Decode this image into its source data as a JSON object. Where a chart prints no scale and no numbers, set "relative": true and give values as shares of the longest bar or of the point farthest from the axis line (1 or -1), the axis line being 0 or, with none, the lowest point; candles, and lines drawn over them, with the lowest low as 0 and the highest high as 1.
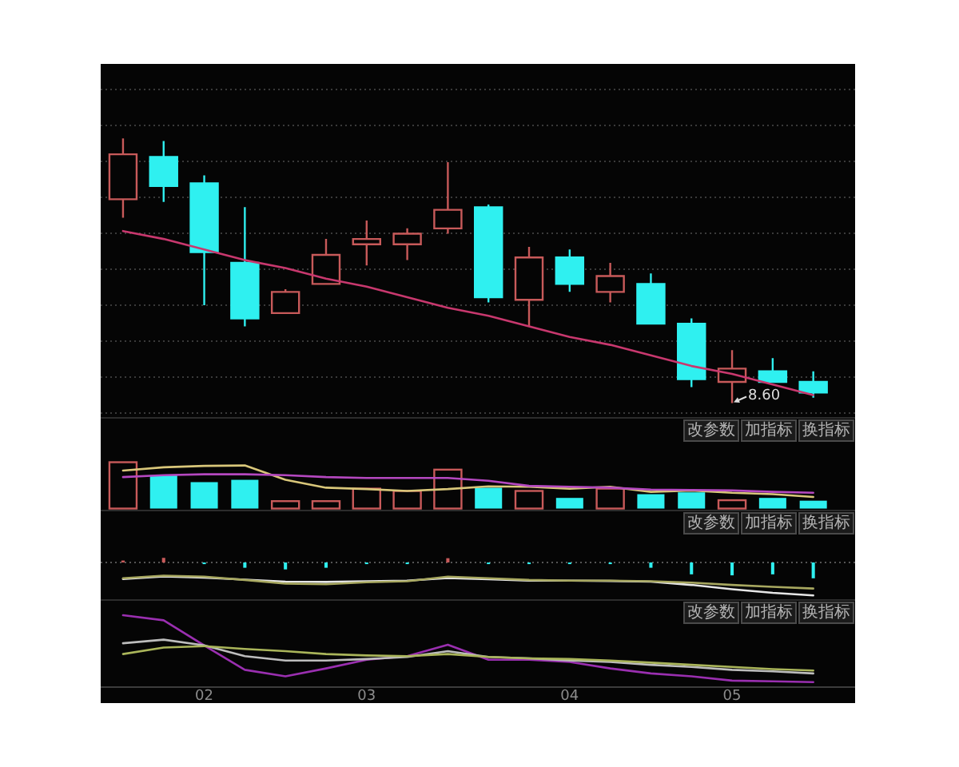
{
  "chart_data": [
    {
      "type": "candlestick",
      "relative": true,
      "grid": "y",
      "tick_labels": false,
      "categories": [
        null,
        null,
        "02",
        null,
        null,
        null,
        "03",
        null,
        null,
        null,
        null,
        "04",
        null,
        null,
        null,
        "05",
        null,
        null
      ],
      "ohlc": [
        [
          0.77,
          1.0,
          0.7,
          0.94
        ],
        [
          0.93,
          0.99,
          0.76,
          0.82
        ],
        [
          0.83,
          0.86,
          0.37,
          0.57
        ],
        [
          0.53,
          0.74,
          0.29,
          0.32
        ],
        [
          0.34,
          0.43,
          0.34,
          0.42
        ],
        [
          0.45,
          0.62,
          0.45,
          0.56
        ],
        [
          0.6,
          0.69,
          0.52,
          0.62
        ],
        [
          0.6,
          0.66,
          0.54,
          0.64
        ],
        [
          0.66,
          0.91,
          0.64,
          0.73
        ],
        [
          0.74,
          0.75,
          0.38,
          0.4
        ],
        [
          0.39,
          0.59,
          0.29,
          0.55
        ],
        [
          0.55,
          0.58,
          0.42,
          0.45
        ],
        [
          0.42,
          0.53,
          0.38,
          0.48
        ],
        [
          0.45,
          0.49,
          0.3,
          0.3
        ],
        [
          0.3,
          0.32,
          0.06,
          0.09
        ],
        [
          0.08,
          0.2,
          0.0,
          0.13
        ],
        [
          0.12,
          0.17,
          0.08,
          0.08
        ],
        [
          0.08,
          0.12,
          0.02,
          0.04
        ]
      ],
      "colors": [
        "#c85a5a",
        "#2ff0f0",
        "#2ff0f0",
        "#2ff0f0",
        "#c85a5a",
        "#c85a5a",
        "#c85a5a",
        "#c85a5a",
        "#c85a5a",
        "#2ff0f0",
        "#c85a5a",
        "#2ff0f0",
        "#c85a5a",
        "#2ff0f0",
        "#2ff0f0",
        "#c85a5a",
        "#2ff0f0",
        "#2ff0f0"
      ],
      "series": [
        {
          "type": "line",
          "color": "#c8386e",
          "values": [
            0.65,
            0.62,
            0.58,
            0.54,
            0.51,
            0.47,
            0.44,
            0.4,
            0.36,
            0.33,
            0.29,
            0.25,
            0.22,
            0.18,
            0.14,
            0.11,
            0.07,
            0.03
          ]
        }
      ],
      "annotations": [
        {
          "text": "8.60",
          "x": "05",
          "y": 0
        }
      ]
    },
    {
      "type": "bar",
      "relative": true,
      "tick_labels": false,
      "categories": [
        null,
        null,
        "02",
        null,
        null,
        null,
        "03",
        null,
        null,
        null,
        null,
        "04",
        null,
        null,
        null,
        "05",
        null,
        null
      ],
      "series": [
        {
          "colors": [
            "#c85a5a",
            "#2ff0f0",
            "#2ff0f0",
            "#2ff0f0",
            "#c85a5a",
            "#c85a5a",
            "#c85a5a",
            "#c85a5a",
            "#c85a5a",
            "#2ff0f0",
            "#c85a5a",
            "#2ff0f0",
            "#c85a5a",
            "#2ff0f0",
            "#2ff0f0",
            "#c85a5a",
            "#2ff0f0",
            "#2ff0f0"
          ],
          "values": [
            1.0,
            0.72,
            0.57,
            0.62,
            0.16,
            0.16,
            0.43,
            0.38,
            0.84,
            0.45,
            0.38,
            0.23,
            0.43,
            0.31,
            0.35,
            0.18,
            0.23,
            0.17
          ]
        },
        {
          "type": "line",
          "color": "#d9c77a",
          "values": [
            0.82,
            0.89,
            0.92,
            0.93,
            0.62,
            0.45,
            0.42,
            0.38,
            0.42,
            0.48,
            0.47,
            0.43,
            0.47,
            0.36,
            0.39,
            0.34,
            0.31,
            0.25
          ]
        },
        {
          "type": "line",
          "color": "#b548c0",
          "values": [
            0.68,
            0.72,
            0.74,
            0.74,
            0.72,
            0.68,
            0.66,
            0.66,
            0.66,
            0.6,
            0.49,
            0.47,
            0.45,
            0.41,
            0.4,
            0.39,
            0.36,
            0.34
          ]
        }
      ],
      "annotations": [
        "改参数",
        "加指标",
        "换指标"
      ]
    },
    {
      "type": "bar",
      "relative": true,
      "tick_labels": false,
      "categories": [
        null,
        null,
        "02",
        null,
        null,
        null,
        "03",
        null,
        null,
        null,
        null,
        "04",
        null,
        null,
        null,
        "05",
        null,
        null
      ],
      "series": [
        {
          "colors": [
            "#c85a5a",
            "#c85a5a",
            "#2ff0f0",
            "#2ff0f0",
            "#2ff0f0",
            "#2ff0f0",
            "#2ff0f0",
            "#2ff0f0",
            "#c85a5a",
            "#2ff0f0",
            "#2ff0f0",
            "#2ff0f0",
            "#2ff0f0",
            "#2ff0f0",
            "#2ff0f0",
            "#2ff0f0",
            "#2ff0f0",
            "#2ff0f0"
          ],
          "values": [
            0.06,
            0.14,
            -0.05,
            -0.16,
            -0.21,
            -0.16,
            -0.05,
            -0.05,
            0.13,
            -0.05,
            -0.05,
            -0.05,
            -0.05,
            -0.16,
            -0.36,
            -0.39,
            -0.36,
            -0.48
          ]
        },
        {
          "type": "line",
          "color": "#e6e6e6",
          "values": [
            -0.5,
            -0.42,
            -0.46,
            -0.52,
            -0.58,
            -0.59,
            -0.57,
            -0.55,
            -0.47,
            -0.51,
            -0.55,
            -0.55,
            -0.56,
            -0.58,
            -0.68,
            -0.81,
            -0.92,
            -1.0
          ]
        },
        {
          "type": "line",
          "color": "#a8a860",
          "values": [
            -0.48,
            -0.4,
            -0.43,
            -0.53,
            -0.64,
            -0.66,
            -0.6,
            -0.57,
            -0.43,
            -0.48,
            -0.53,
            -0.55,
            -0.55,
            -0.57,
            -0.61,
            -0.68,
            -0.74,
            -0.79
          ]
        }
      ],
      "ref_lines": [
        {
          "axis": "y",
          "value": 0,
          "color": "#555555",
          "line_style": "dotted"
        }
      ],
      "annotations": [
        "改参数",
        "加指标",
        "换指标"
      ]
    },
    {
      "type": "line",
      "relative": true,
      "tick_labels": "x",
      "categories": [
        null,
        null,
        "02",
        null,
        null,
        null,
        "03",
        null,
        null,
        null,
        null,
        "04",
        null,
        null,
        null,
        "05",
        null,
        null
      ],
      "series": [
        {
          "color": "#9a2fb0",
          "values": [
            1.0,
            0.93,
            0.58,
            0.24,
            0.15,
            0.26,
            0.38,
            0.43,
            0.59,
            0.38,
            0.38,
            0.35,
            0.26,
            0.19,
            0.15,
            0.09,
            0.08,
            0.07
          ]
        },
        {
          "color": "#bdbdbd",
          "values": [
            0.61,
            0.66,
            0.58,
            0.43,
            0.37,
            0.37,
            0.39,
            0.42,
            0.5,
            0.42,
            0.4,
            0.37,
            0.35,
            0.31,
            0.28,
            0.24,
            0.22,
            0.19
          ]
        },
        {
          "color": "#aab55a",
          "values": [
            0.46,
            0.55,
            0.57,
            0.53,
            0.5,
            0.46,
            0.44,
            0.43,
            0.46,
            0.42,
            0.4,
            0.39,
            0.37,
            0.34,
            0.31,
            0.28,
            0.25,
            0.23
          ]
        }
      ],
      "annotations": [
        "改参数",
        "加指标",
        "换指标"
      ]
    }
  ]
}
